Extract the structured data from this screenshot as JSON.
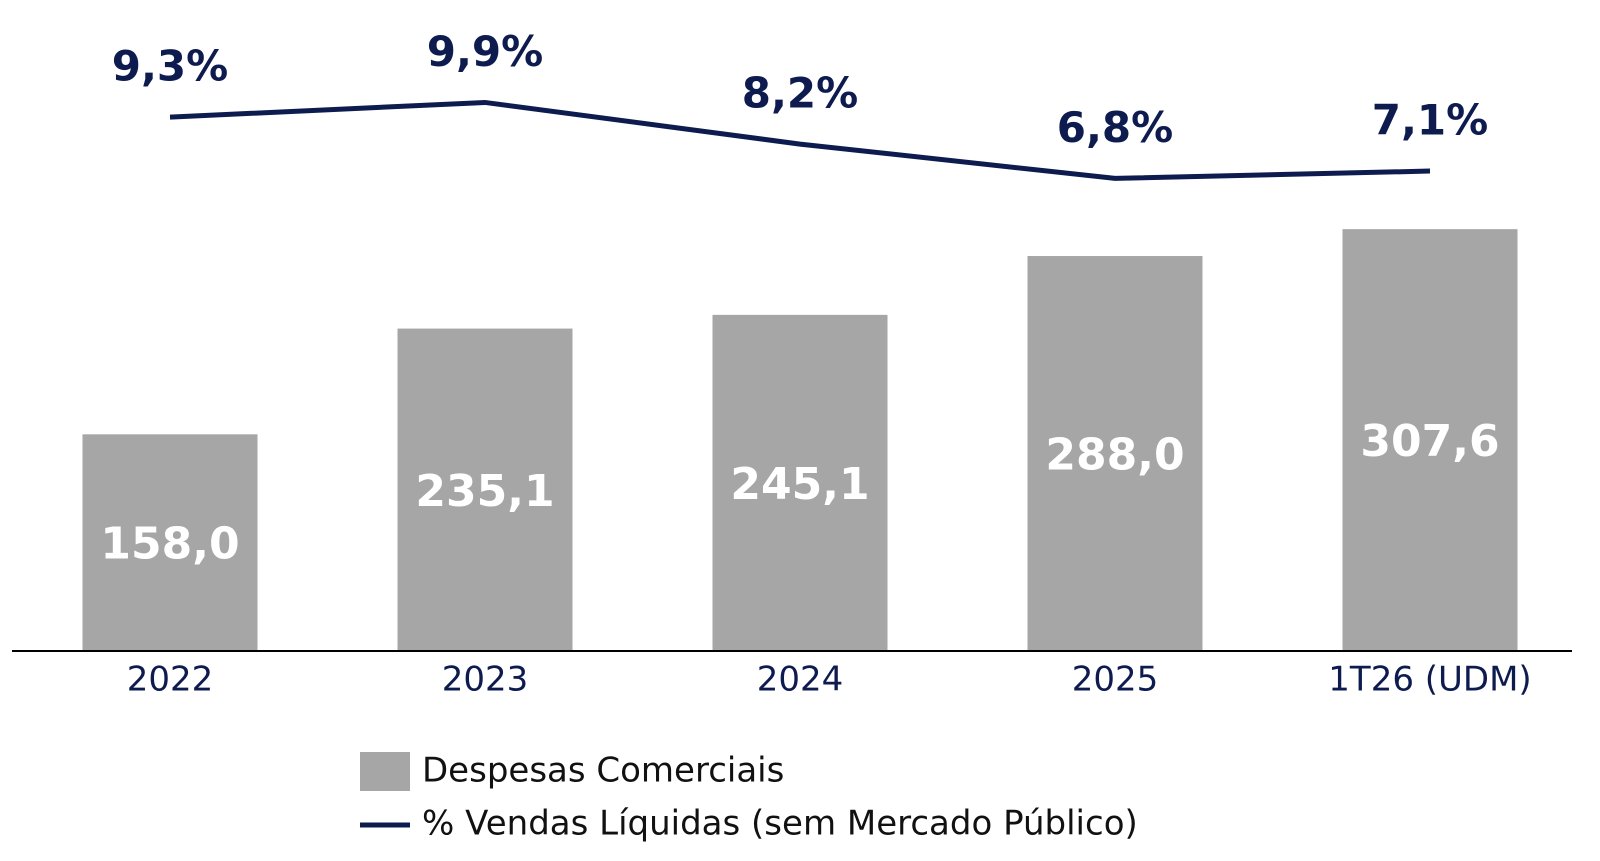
{
  "chart_data": {
    "type": "combo",
    "categories": [
      "2022",
      "2023",
      "2024",
      "2025",
      "1T26 (UDM)"
    ],
    "series": [
      {
        "name": "Despesas Comerciais",
        "type": "bar",
        "color": "#a6a6a6",
        "values": [
          158.0,
          235.1,
          245.1,
          288.0,
          307.6
        ],
        "value_labels": [
          "158,0",
          "235,1",
          "245,1",
          "288,0",
          "307,6"
        ]
      },
      {
        "name": "% Vendas Líquidas (sem Mercado Público)",
        "type": "line",
        "axis": "y2",
        "color": "#0d1b4f",
        "values": [
          9.3,
          9.9,
          8.2,
          6.8,
          7.1
        ],
        "value_labels": [
          "9,3%",
          "9,9%",
          "8,2%",
          "6,8%",
          "7,1%"
        ]
      }
    ],
    "ylim": [
      0,
      350
    ],
    "y2lim": [
      0,
      12
    ],
    "legend": "bottom"
  }
}
